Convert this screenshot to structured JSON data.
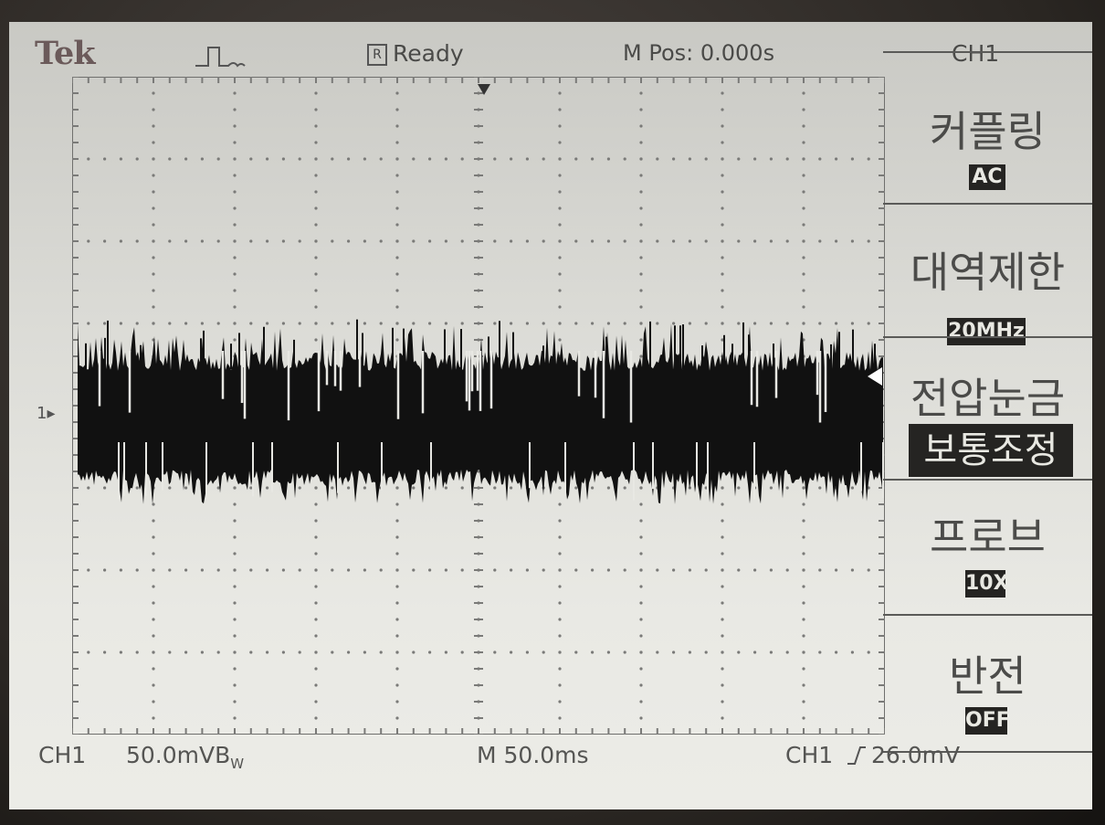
{
  "header": {
    "brand": "Tek",
    "trigger_icon": "pulse-trigger-icon",
    "status_box": "R",
    "status": "Ready",
    "position": "M Pos: 0.000s",
    "menu_title": "CH1"
  },
  "menu": {
    "items": [
      {
        "label": "커플링",
        "value": "AC"
      },
      {
        "label": "대역제한",
        "value": "20MHz"
      },
      {
        "label": "전압눈금",
        "value": "보통조정"
      },
      {
        "label": "프로브",
        "value": "10X"
      },
      {
        "label": "반전",
        "value": "OFF"
      }
    ]
  },
  "channel_marker": "1",
  "footer": {
    "channel": "CH1",
    "scale": "50.0mV",
    "bw_mark": "B",
    "bw_sub": "W",
    "timebase": "M 50.0ms",
    "trigger_source": "CH1",
    "trigger_slope_icon": "rising-edge-icon",
    "trigger_level": "26.0mV"
  },
  "colors": {
    "screen": "#e4e4df",
    "trace": "#111111",
    "grid": "#7a7a78",
    "text": "#4a4a48"
  }
}
